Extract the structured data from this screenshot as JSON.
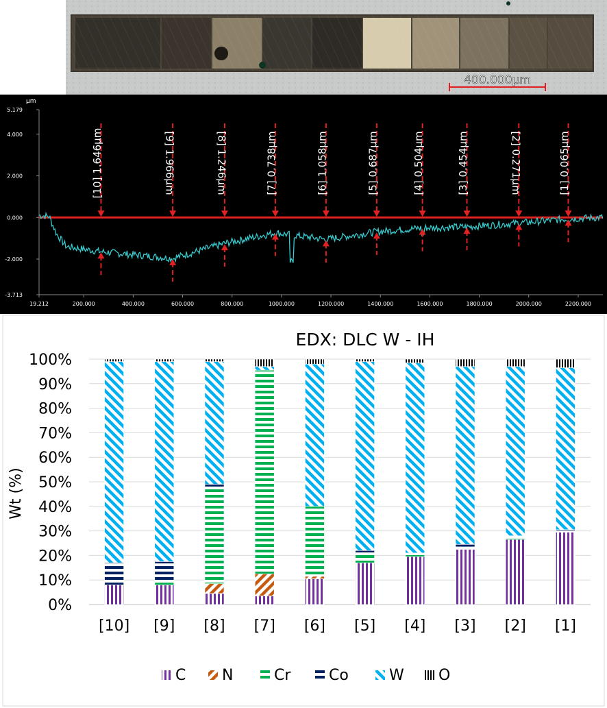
{
  "micrograph": {
    "scale_label": "400.000µm",
    "colors": {
      "background": "#c7cac9",
      "strip_edge": "#5a5244",
      "scale_bar": "#e02020"
    }
  },
  "profile": {
    "unit_label": "µm",
    "colors": {
      "background": "#000000",
      "line": "#37c9cc",
      "marker": "#e02222",
      "axis_text": "#ffffff"
    },
    "y_ticks": [
      "5.179",
      "4.000",
      "2.000",
      "0.000",
      "-2.000",
      "-3.713"
    ],
    "x_ticks": [
      "19.212",
      "200.000",
      "400.000",
      "600.000",
      "800.000",
      "1000.000",
      "1200.000",
      "1400.000",
      "1600.000",
      "1800.000",
      "2000.000",
      "2200.000"
    ],
    "x_range": [
      19.212,
      2300
    ],
    "y_range": [
      -3.713,
      5.179
    ],
    "markers": [
      {
        "label": "[10] 1.646µm",
        "x": 270,
        "depth": -1.646,
        "rotate": "ccw"
      },
      {
        "label": "[9] 1.966µm",
        "x": 560,
        "depth": -1.966,
        "rotate": "cw"
      },
      {
        "label": "[8] 1.246µm",
        "x": 770,
        "depth": -1.246,
        "rotate": "cw"
      },
      {
        "label": "[7] 0.738µm",
        "x": 975,
        "depth": -0.738,
        "rotate": "ccw"
      },
      {
        "label": "[6] 1.058µm",
        "x": 1180,
        "depth": -1.058,
        "rotate": "ccw"
      },
      {
        "label": "[5] 0.687µm",
        "x": 1385,
        "depth": -0.687,
        "rotate": "ccw"
      },
      {
        "label": "[4] 0.504µm",
        "x": 1570,
        "depth": -0.504,
        "rotate": "ccw"
      },
      {
        "label": "[3] 0.454µm",
        "x": 1750,
        "depth": -0.454,
        "rotate": "ccw"
      },
      {
        "label": "[2] 0.271µm",
        "x": 1960,
        "depth": -0.271,
        "rotate": "cw"
      },
      {
        "label": "[1] 0.065µm",
        "x": 2160,
        "depth": -0.065,
        "rotate": "ccw"
      }
    ]
  },
  "chart_data": {
    "type": "bar",
    "stacked": true,
    "title": "EDX: DLC W - IH",
    "ylabel": "Wt (%)",
    "xlabel": "",
    "ylim": [
      0,
      100
    ],
    "y_ticks": [
      "0%",
      "10%",
      "20%",
      "30%",
      "40%",
      "50%",
      "60%",
      "70%",
      "80%",
      "90%",
      "100%"
    ],
    "grid": true,
    "legend_position": "bottom",
    "categories": [
      "[10]",
      "[9]",
      "[8]",
      "[7]",
      "[6]",
      "[5]",
      "[4]",
      "[3]",
      "[2]",
      "[1]"
    ],
    "series": [
      {
        "name": "C",
        "color": "#7030a0",
        "pattern": "vertical",
        "values": [
          8,
          8,
          4.5,
          3.5,
          10.5,
          17,
          19.5,
          22.5,
          26.5,
          29.5
        ]
      },
      {
        "name": "N",
        "color": "#c55a11",
        "pattern": "back-diagonal",
        "values": [
          0,
          0,
          4,
          9,
          1,
          0,
          0,
          0,
          0,
          0
        ]
      },
      {
        "name": "Cr",
        "color": "#00b050",
        "pattern": "horizontal",
        "values": [
          0,
          1,
          39.5,
          83,
          28.5,
          3.5,
          1.5,
          1,
          1,
          0.5
        ]
      },
      {
        "name": "Co",
        "color": "#002060",
        "pattern": "horizontal",
        "values": [
          9,
          8.5,
          1,
          0,
          0,
          1.5,
          0,
          1,
          0.5,
          0.5
        ]
      },
      {
        "name": "W",
        "color": "#00b0f0",
        "pattern": "forward-diagonal",
        "values": [
          82,
          81.5,
          50,
          1.5,
          58,
          77,
          77.5,
          72.5,
          69,
          66
        ]
      },
      {
        "name": "O",
        "color": "#000000",
        "pattern": "vertical-dense",
        "values": [
          1,
          1,
          1,
          3,
          2,
          1,
          1.5,
          3,
          3,
          3.5
        ]
      }
    ]
  }
}
